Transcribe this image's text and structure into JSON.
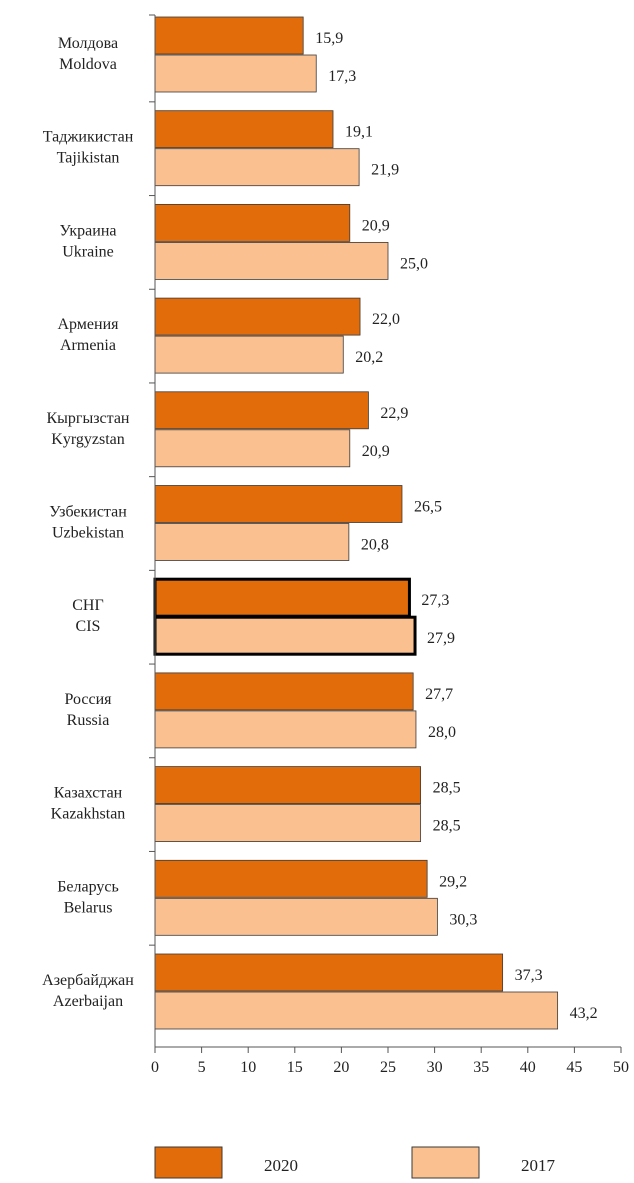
{
  "chart_data": {
    "type": "bar",
    "orientation": "horizontal",
    "categories": [
      {
        "ru": "Молдова",
        "en": "Moldova"
      },
      {
        "ru": "Таджикистан",
        "en": "Tajikistan"
      },
      {
        "ru": "Украина",
        "en": "Ukraine"
      },
      {
        "ru": "Армения",
        "en": "Armenia"
      },
      {
        "ru": "Кыргызстан",
        "en": "Kyrgyzstan"
      },
      {
        "ru": "Узбекистан",
        "en": "Uzbekistan"
      },
      {
        "ru": "СНГ",
        "en": "CIS",
        "highlight": true
      },
      {
        "ru": "Россия",
        "en": "Russia"
      },
      {
        "ru": "Казахстан",
        "en": "Kazakhstan"
      },
      {
        "ru": "Беларусь",
        "en": "Belarus"
      },
      {
        "ru": "Азербайджан",
        "en": "Azerbaijan"
      }
    ],
    "series": [
      {
        "name": "2020",
        "color": "#e36c0a",
        "values": [
          15.9,
          19.1,
          20.9,
          22.0,
          22.9,
          26.5,
          27.3,
          27.7,
          28.5,
          29.2,
          37.3
        ],
        "labels": [
          "15,9",
          "19,1",
          "20,9",
          "22,0",
          "22,9",
          "26,5",
          "27,3",
          "27,7",
          "28,5",
          "29,2",
          "37,3"
        ]
      },
      {
        "name": "2017",
        "color": "#fac090",
        "values": [
          17.3,
          21.9,
          25.0,
          20.2,
          20.9,
          20.8,
          27.9,
          28.0,
          28.5,
          30.3,
          43.2
        ],
        "labels": [
          "17,3",
          "21,9",
          "25,0",
          "20,2",
          "20,9",
          "20,8",
          "27,9",
          "28,0",
          "28,5",
          "30,3",
          "43,2"
        ]
      }
    ],
    "xlim": [
      0,
      50
    ],
    "xticks": [
      0,
      5,
      10,
      15,
      20,
      25,
      30,
      35,
      40,
      45,
      50
    ],
    "legend_position": "bottom",
    "grid": false,
    "title": "",
    "xlabel": "",
    "ylabel": ""
  }
}
